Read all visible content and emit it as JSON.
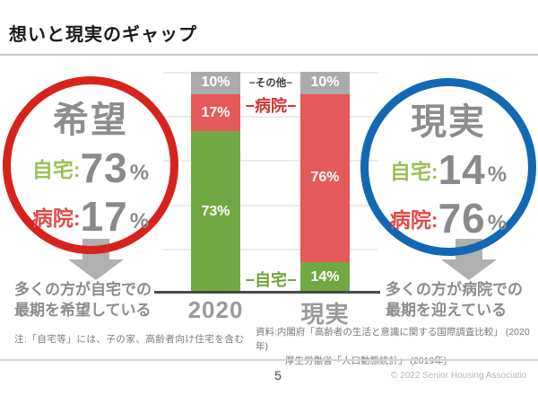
{
  "slide": {
    "title": "想いと現実のギャップ",
    "page_number": "5",
    "copyright": "© 2022 Senior Housing Associatio",
    "note": "注:「自宅等」には、子の家、高齢者向け住宅を含む",
    "source_line1": "資料:内閣府「高齢者の生活と意識に関する国際調査比較」 (2020年)",
    "source_line2": "厚生労働省「人口動態統計」 (2019年)"
  },
  "hope_circle": {
    "title": "希望",
    "home_label": "自宅:",
    "home_value": "73",
    "hospital_label": "病院:",
    "hospital_value": "17",
    "unit": "%",
    "caption_line1": "多くの方が自宅での",
    "caption_line2": "最期を希望している",
    "border_color": "#d7231d"
  },
  "reality_circle": {
    "title": "現実",
    "home_label": "自宅:",
    "home_value": "14",
    "hospital_label": "病院:",
    "hospital_value": "76",
    "unit": "%",
    "caption_line1": "多くの方が病院での",
    "caption_line2": "最期を迎えている",
    "border_color": "#1368b4"
  },
  "chart_data": {
    "type": "bar",
    "stacked": true,
    "stack_order": "top-to-bottom",
    "categories": [
      "2020",
      "現実"
    ],
    "series": [
      {
        "name": "その他",
        "values": [
          10,
          10
        ],
        "color": "#ababab",
        "mid_label": "−その他−",
        "label_color": "#3a3a3a"
      },
      {
        "name": "病院",
        "values": [
          17,
          76
        ],
        "color": "#e45a58",
        "mid_label": "−病院−",
        "label_color": "#d5342f"
      },
      {
        "name": "自宅",
        "values": [
          73,
          14
        ],
        "color": "#70a944",
        "mid_label": "−自宅−",
        "label_color": "#6fa33c"
      }
    ],
    "unit": "%",
    "ylim": [
      0,
      100
    ],
    "grid": true,
    "gridlines_pct": [
      100,
      80,
      60,
      40,
      20
    ],
    "legend_position": "between-bars"
  },
  "colors": {
    "hope_border": "#d7231d",
    "reality_border": "#1368b4",
    "home_label": "#9cbf59",
    "hospital_label": "#e04b48",
    "big_number": "#8a8a8a",
    "axis": "#4a4a4a",
    "arrow": "#b0b0b0"
  }
}
